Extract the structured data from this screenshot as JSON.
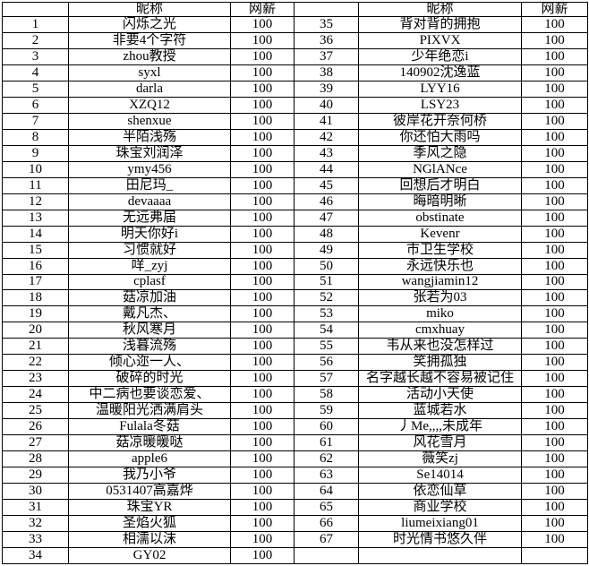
{
  "table": {
    "header": [
      "",
      "昵称",
      "网薪",
      "",
      "昵称",
      "网薪"
    ],
    "rows": [
      [
        "1",
        "闪烁之光",
        "100",
        "35",
        "背对背的拥抱",
        "100"
      ],
      [
        "2",
        "非要4个字符",
        "100",
        "36",
        "PIXVX",
        "100"
      ],
      [
        "3",
        "zhou教授",
        "100",
        "37",
        "少年绝恋i",
        "100"
      ],
      [
        "4",
        "syxl",
        "100",
        "38",
        "140902沈逸蓝",
        "100"
      ],
      [
        "5",
        "darla",
        "100",
        "39",
        "LYY16",
        "100"
      ],
      [
        "6",
        "XZQ12",
        "100",
        "40",
        "LSY23",
        "100"
      ],
      [
        "7",
        "shenxue",
        "100",
        "41",
        "彼岸花开奈何桥",
        "100"
      ],
      [
        "8",
        "半陌浅殇",
        "100",
        "42",
        "你还怕大雨吗",
        "100"
      ],
      [
        "9",
        "珠宝刘润泽",
        "100",
        "43",
        "季风之隐",
        "100"
      ],
      [
        "10",
        "ymy456",
        "100",
        "44",
        "NGlANce",
        "100"
      ],
      [
        "11",
        "田尼玛_",
        "100",
        "45",
        "回想后才明白",
        "100"
      ],
      [
        "12",
        "devaaaa",
        "100",
        "46",
        "晦暗明晰",
        "100"
      ],
      [
        "13",
        "无远弗届",
        "100",
        "47",
        "obstinate",
        "100"
      ],
      [
        "14",
        "明天你好i",
        "100",
        "48",
        "Kevenr",
        "100"
      ],
      [
        "15",
        "习惯就好",
        "100",
        "49",
        "市卫生学校",
        "100"
      ],
      [
        "16",
        "咩_zyj",
        "100",
        "50",
        "永远快乐也",
        "100"
      ],
      [
        "17",
        "cplasf",
        "100",
        "51",
        "wangjiamin12",
        "100"
      ],
      [
        "18",
        "菇凉加油",
        "100",
        "52",
        "张若为03",
        "100"
      ],
      [
        "19",
        "戴凡杰、",
        "100",
        "53",
        "miko",
        "100"
      ],
      [
        "20",
        "秋风寒月",
        "100",
        "54",
        "cmxhuay",
        "100"
      ],
      [
        "21",
        "浅暮流殇",
        "100",
        "55",
        "韦从来也没怎样过",
        "100"
      ],
      [
        "22",
        "倾心迩一人、",
        "100",
        "56",
        "笑拥孤独",
        "100"
      ],
      [
        "23",
        "破碎的时光",
        "100",
        "57",
        "名字越长越不容易被记住",
        "100"
      ],
      [
        "24",
        "中二病也要谈恋爱、",
        "100",
        "58",
        "活动小天使",
        "100"
      ],
      [
        "25",
        "温暖阳光洒满肩头",
        "100",
        "59",
        "蓝城若水",
        "100"
      ],
      [
        "26",
        "Fulala冬菇",
        "100",
        "60",
        "丿Me,,,,未成年",
        "100"
      ],
      [
        "27",
        "菇凉暖暖哒",
        "100",
        "61",
        "风花雪月",
        "100"
      ],
      [
        "28",
        "apple6",
        "100",
        "62",
        "薇笑zj",
        "100"
      ],
      [
        "29",
        "我乃小爷",
        "100",
        "63",
        "Se14014",
        "100"
      ],
      [
        "30",
        "0531407高嘉烨",
        "100",
        "64",
        "依恋仙草",
        "100"
      ],
      [
        "31",
        "珠宝YR",
        "100",
        "65",
        "商业学校",
        "100"
      ],
      [
        "32",
        "圣焰火狐",
        "100",
        "66",
        "liumeixiang01",
        "100"
      ],
      [
        "33",
        "相濡以沫",
        "100",
        "67",
        "时光情书悠久伴",
        "100"
      ],
      [
        "34",
        "GY02",
        "100",
        "",
        "",
        ""
      ]
    ]
  }
}
